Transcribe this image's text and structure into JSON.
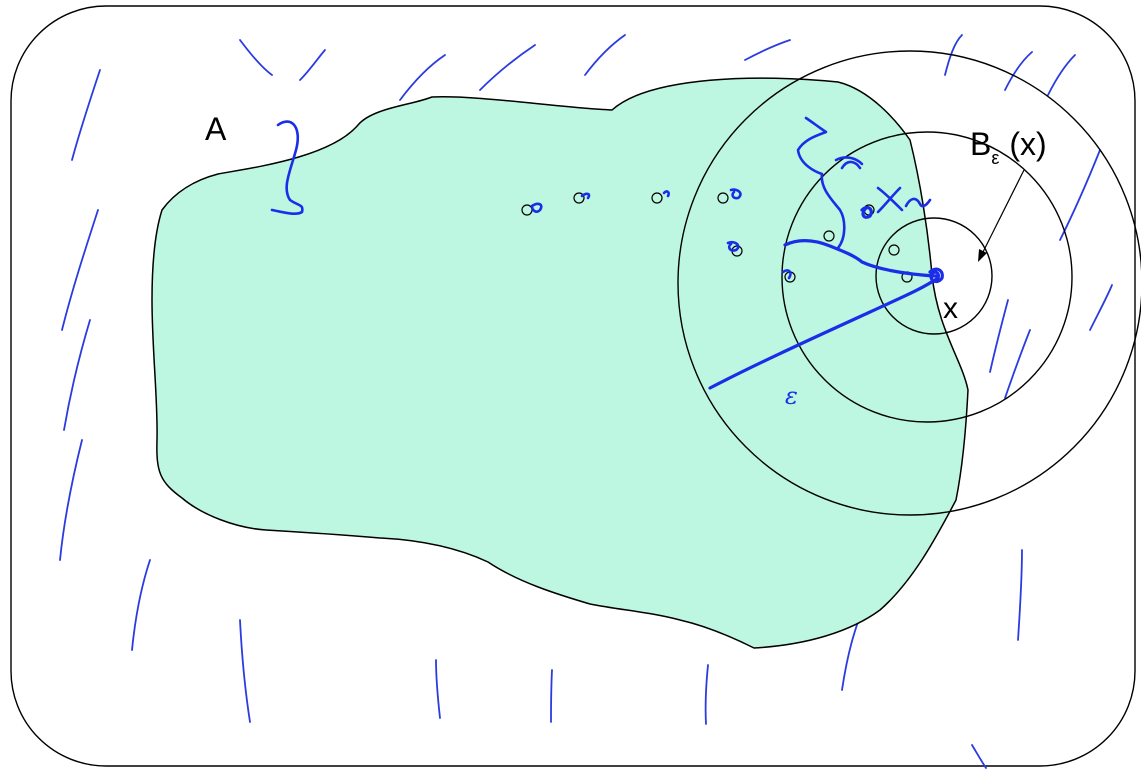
{
  "labels": {
    "set_name": "A",
    "ball_base": "B",
    "ball_sub": "ε",
    "ball_arg": "(x)",
    "point": "x",
    "radius": "ε",
    "sequence_name": "x",
    "sequence_sub": "n"
  },
  "colors": {
    "set_fill": "#bdf7e1",
    "ink": "#1a2ee8",
    "outline": "#000000"
  }
}
